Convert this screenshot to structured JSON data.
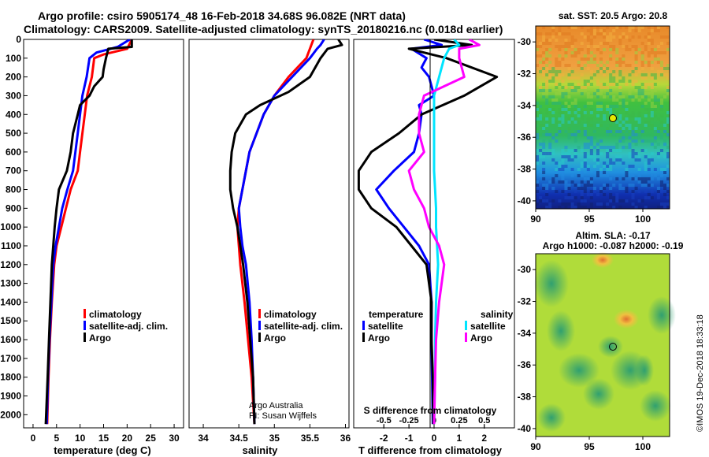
{
  "header": {
    "line1": "Argo profile: csiro 5905174_48 16-Feb-2018 34.68S 96.082E (NRT data)",
    "line2": "Climatology: CARS2009. Satellite-adjusted climatology: synTS_20180216.nc (0.018d earlier)"
  },
  "colors": {
    "climatology": "#ff0000",
    "satellite": "#0000ff",
    "argo": "#000000",
    "sat_salinity": "#00e5ff",
    "clim_salinity_diff": "#ff00ff"
  },
  "depth_axis": {
    "ticks": [
      "0",
      "100",
      "200",
      "300",
      "400",
      "500",
      "600",
      "700",
      "800",
      "900",
      "1000",
      "1100",
      "1200",
      "1300",
      "1400",
      "1500",
      "1600",
      "1700",
      "1800",
      "1900",
      "2000"
    ]
  },
  "panels": {
    "temperature": {
      "xlabel": "temperature (deg C)",
      "ticks": [
        "0",
        "5",
        "10",
        "15",
        "20",
        "25",
        "30"
      ],
      "legend": [
        "climatology",
        "satellite-adj. clim.",
        "Argo"
      ]
    },
    "salinity": {
      "xlabel": "salinity",
      "ticks": [
        "34",
        "34.5",
        "35",
        "35.5",
        "36"
      ],
      "legend": [
        "climatology",
        "satellite-adj. clim.",
        "Argo"
      ],
      "credit1": "Argo Australia",
      "credit2": "PI: Susan Wijffels"
    },
    "difference": {
      "xlabel": "T difference from climatology",
      "ticks": [
        "-2",
        "-1",
        "0",
        "1",
        "2"
      ],
      "s_title": "S difference from climatology",
      "s_ticks": [
        "-0.5",
        "-0.25",
        "0",
        "0.25",
        "0.5"
      ],
      "legend_t_title": "temperature",
      "legend_s_title": "salinity",
      "legend_t": [
        "satellite",
        "Argo"
      ],
      "legend_s": [
        "satellite",
        "Argo"
      ]
    }
  },
  "maps": {
    "sst": {
      "title": "sat. SST: 20.5 Argo: 20.8",
      "yticks": [
        "-30",
        "-32",
        "-34",
        "-36",
        "-38",
        "-40"
      ],
      "xticks": [
        "90",
        "95",
        "100"
      ]
    },
    "sla": {
      "title1": "Altim. SLA: -0.17",
      "title2": "Argo h1000: -0.087 h2000: -0.19",
      "yticks": [
        "-30",
        "-32",
        "-34",
        "-36",
        "-38",
        "-40"
      ],
      "xticks": [
        "90",
        "95",
        "100"
      ]
    }
  },
  "footer": {
    "stamp": "©IMOS 19-Dec-2018 18:33:18"
  },
  "chart_data": [
    {
      "type": "line",
      "name": "temperature profile",
      "xlabel": "temperature (deg C)",
      "ylabel": "depth",
      "xlim": [
        -2,
        32
      ],
      "ylim": [
        2070,
        0
      ],
      "series": [
        {
          "name": "climatology",
          "depth": [
            0,
            50,
            80,
            100,
            200,
            300,
            400,
            500,
            600,
            700,
            800,
            900,
            1000,
            1100,
            1200,
            1400,
            1600,
            1800,
            2050
          ],
          "values": [
            21,
            20,
            15,
            13,
            12.5,
            11.5,
            11,
            10.5,
            10,
            9.5,
            8,
            7,
            6,
            5,
            4.5,
            4,
            3.6,
            3.3,
            3
          ]
        },
        {
          "name": "satellite-adj. clim.",
          "depth": [
            0,
            40,
            70,
            100,
            200,
            300,
            400,
            500,
            600,
            700,
            800,
            900,
            1000,
            1100,
            1200,
            1400,
            1600,
            1800,
            2050
          ],
          "values": [
            20.6,
            18,
            13.5,
            12,
            11.4,
            10.5,
            10,
            9.5,
            9,
            8.5,
            7.3,
            6.2,
            5.5,
            4.8,
            4.3,
            3.9,
            3.5,
            3.2,
            2.9
          ]
        },
        {
          "name": "Argo",
          "depth": [
            0,
            40,
            50,
            100,
            160,
            200,
            250,
            300,
            350,
            400,
            500,
            600,
            700,
            800,
            900,
            1000,
            1100,
            1200,
            1400,
            1600,
            1800,
            2050
          ],
          "values": [
            21,
            21,
            16,
            15.5,
            15,
            14.8,
            13,
            12,
            10,
            9.5,
            8.5,
            8,
            7.2,
            5.5,
            5,
            4.6,
            4.3,
            4,
            3.7,
            3.4,
            3.1,
            2.7
          ]
        }
      ]
    },
    {
      "type": "line",
      "name": "salinity profile",
      "xlabel": "salinity",
      "xlim": [
        33.8,
        36.05
      ],
      "ylim": [
        2070,
        0
      ],
      "series": [
        {
          "name": "climatology",
          "depth": [
            0,
            50,
            100,
            200,
            300,
            400,
            500,
            600,
            700,
            800,
            900,
            1000,
            1100,
            1200,
            1400,
            1600,
            1800,
            2050
          ],
          "values": [
            35.55,
            35.5,
            35.45,
            35.2,
            35.0,
            34.85,
            34.75,
            34.65,
            34.6,
            34.55,
            34.5,
            34.48,
            34.5,
            34.52,
            34.58,
            34.63,
            34.68,
            34.72
          ]
        },
        {
          "name": "satellite-adj. clim.",
          "depth": [
            0,
            30,
            50,
            100,
            200,
            300,
            400,
            500,
            600,
            700,
            800,
            900,
            1000,
            1100,
            1200,
            1400,
            1600,
            1800,
            2050
          ],
          "values": [
            35.7,
            35.65,
            35.6,
            35.5,
            35.25,
            35.0,
            34.85,
            34.75,
            34.65,
            34.6,
            34.55,
            34.5,
            34.52,
            34.55,
            34.6,
            34.65,
            34.68,
            34.7,
            34.72
          ]
        },
        {
          "name": "Argo",
          "depth": [
            0,
            30,
            50,
            100,
            200,
            280,
            350,
            400,
            500,
            600,
            700,
            800,
            900,
            1000,
            1100,
            1200,
            1400,
            1600,
            1800,
            2050
          ],
          "values": [
            35.9,
            35.95,
            35.75,
            35.65,
            35.5,
            35.2,
            34.8,
            34.6,
            34.45,
            34.4,
            34.38,
            34.38,
            34.42,
            34.48,
            34.52,
            34.56,
            34.62,
            34.66,
            34.7,
            34.72
          ]
        }
      ]
    },
    {
      "type": "line",
      "name": "difference from climatology",
      "xlabel": "T difference from climatology",
      "xlim": [
        -3.2,
        3.2
      ],
      "s_xlim": [
        -0.8,
        0.8
      ],
      "ylim": [
        2070,
        0
      ],
      "series": [
        {
          "name": "temperature satellite",
          "depth": [
            0,
            30,
            50,
            100,
            150,
            200,
            300,
            350,
            400,
            500,
            600,
            700,
            800,
            900,
            1000,
            1100,
            1200,
            1400,
            1600,
            1800,
            2050
          ],
          "values": [
            -0.4,
            0.3,
            -0.9,
            -0.3,
            -0.5,
            -0.2,
            0,
            -0.6,
            -0.5,
            -0.6,
            -0.8,
            -1.6,
            -2.3,
            -1.8,
            -1.2,
            -0.6,
            -0.2,
            -0.1,
            -0.1,
            -0.08,
            -0.05
          ]
        },
        {
          "name": "temperature Argo",
          "depth": [
            0,
            30,
            50,
            100,
            200,
            300,
            400,
            500,
            600,
            700,
            800,
            900,
            1000,
            1100,
            1200,
            1400,
            1600,
            1800,
            2050
          ],
          "values": [
            0,
            1.5,
            -1,
            0.5,
            2.5,
            1.2,
            -0.5,
            -1.4,
            -2.5,
            -3,
            -3,
            -2.5,
            -1.5,
            -0.9,
            -0.3,
            -0.1,
            -0.1,
            -0.05,
            -0.03
          ]
        },
        {
          "name": "salinity satellite",
          "depth": [
            0,
            30,
            50,
            100,
            200,
            300,
            400,
            500,
            600,
            700,
            800,
            900,
            1000,
            1100,
            1200,
            1400,
            1600,
            1800,
            2050
          ],
          "values": [
            0.2,
            0.25,
            0.15,
            0.1,
            0.05,
            0.0,
            0.0,
            0.0,
            0.0,
            0.0,
            0.01,
            0.02,
            0.02,
            0.03,
            0.04,
            0.02,
            0.01,
            0.01,
            0.0
          ]
        },
        {
          "name": "salinity Argo",
          "depth": [
            0,
            30,
            50,
            100,
            200,
            300,
            400,
            500,
            600,
            700,
            800,
            900,
            1000,
            1100,
            1200,
            1400,
            1600,
            1800,
            2050
          ],
          "values": [
            0.35,
            0.45,
            0.25,
            0.25,
            0.3,
            -0.1,
            -0.15,
            -0.15,
            -0.1,
            -0.25,
            -0.2,
            -0.1,
            -0.05,
            0.05,
            0.1,
            0.05,
            0.02,
            0.01,
            0.0
          ]
        }
      ]
    },
    {
      "type": "heatmap",
      "name": "sat. SST map",
      "xlim": [
        90,
        102.5
      ],
      "ylim": [
        -40.5,
        -29
      ],
      "argo_position": {
        "lon": 96.082,
        "lat": -34.68
      },
      "sst": 20.5,
      "argo_sst": 20.8
    },
    {
      "type": "heatmap",
      "name": "Altim. SLA map",
      "xlim": [
        90,
        102.5
      ],
      "ylim": [
        -40.5,
        -29
      ],
      "argo_position": {
        "lon": 96.082,
        "lat": -34.68
      },
      "sla": -0.17,
      "argo_h1000": -0.087,
      "argo_h2000": -0.19
    }
  ]
}
